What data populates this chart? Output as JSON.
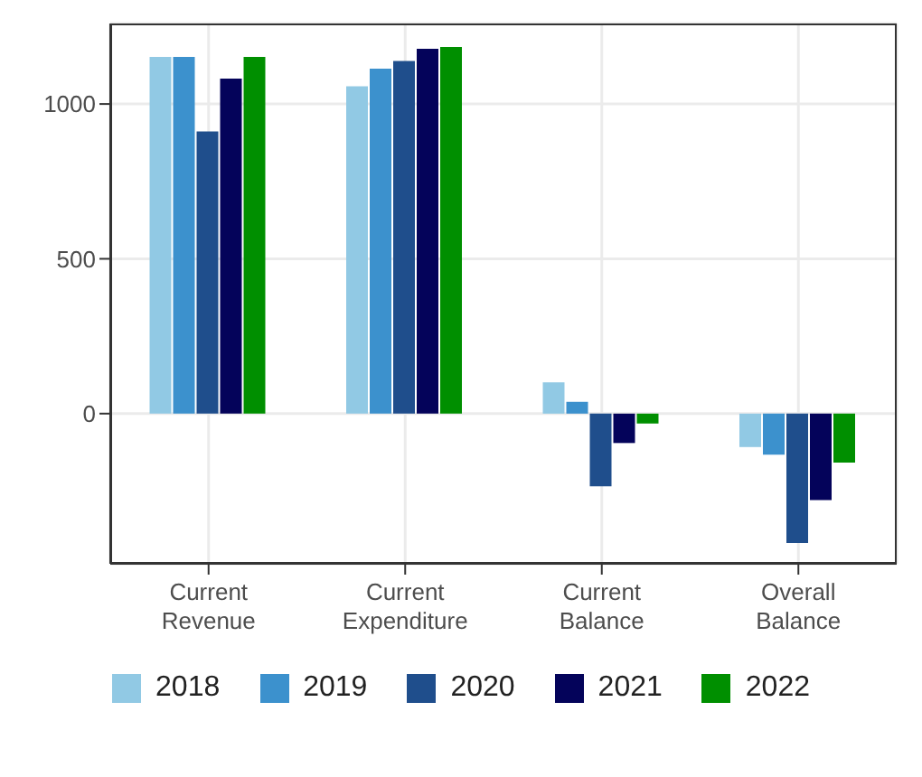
{
  "chart_data": {
    "type": "bar",
    "categories": [
      "Current Revenue",
      "Current Expenditure",
      "Current Balance",
      "Overall Balance"
    ],
    "series": [
      {
        "name": "2018",
        "color": "#91c9e4",
        "values": [
          1152,
          1057,
          101,
          -108
        ]
      },
      {
        "name": "2019",
        "color": "#3c91cd",
        "values": [
          1152,
          1114,
          38,
          -133
        ]
      },
      {
        "name": "2020",
        "color": "#1f4e8c",
        "values": [
          911,
          1139,
          -235,
          -418
        ]
      },
      {
        "name": "2021",
        "color": "#04035a",
        "values": [
          1082,
          1178,
          -95,
          -279
        ]
      },
      {
        "name": "2022",
        "color": "#008f00",
        "values": [
          1152,
          1184,
          -32,
          -158
        ]
      }
    ],
    "ylim": [
      -485,
      1260
    ],
    "yticks": [
      0,
      500,
      1000
    ],
    "grid": true,
    "legend": "bottom"
  }
}
